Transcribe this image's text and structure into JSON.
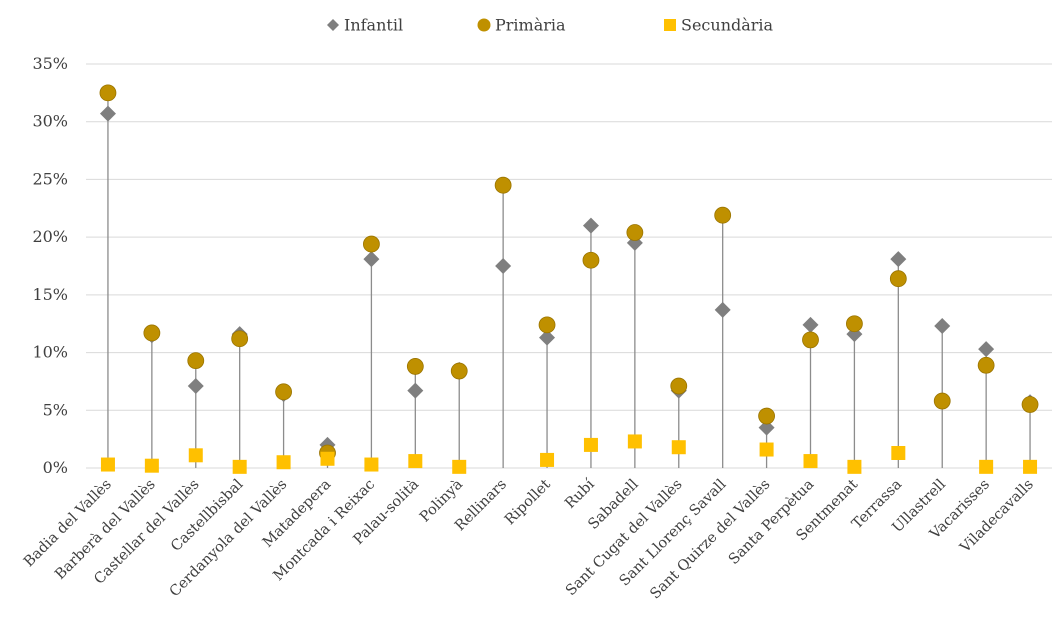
{
  "chart_data": {
    "type": "scatter",
    "title": "",
    "xlabel": "",
    "ylabel": "",
    "ylim": [
      0,
      35
    ],
    "y_ticks": [
      "0%",
      "5%",
      "10%",
      "15%",
      "20%",
      "25%",
      "30%",
      "35%"
    ],
    "y_tick_values": [
      0,
      5,
      10,
      15,
      20,
      25,
      30,
      35
    ],
    "grid": "horizontal",
    "legend_position": "top",
    "categories": [
      "Badia del Vallès",
      "Barberà del Vallès",
      "Castellar del Vallès",
      "Castellbisbal",
      "Cerdanyola del Vallès",
      "Matadepera",
      "Montcada i Reixac",
      "Palau-solità",
      "Polinyà",
      "Rellinars",
      "Ripollet",
      "Rubí",
      "Sabadell",
      "Sant Cugat del Vallès",
      "Sant Llorenç Savall",
      "Sant Quirze del Vallès",
      "Santa Perpètua",
      "Sentmenat",
      "Terrassa",
      "Ullastrell",
      "Vacarisses",
      "Viladecavalls"
    ],
    "series": [
      {
        "name": "Infantil",
        "marker": "diamond",
        "color": "#7f7f7f",
        "values": [
          30.7,
          11.5,
          7.1,
          11.6,
          6.4,
          2.0,
          18.1,
          6.7,
          8.5,
          17.5,
          11.3,
          21.0,
          19.5,
          6.7,
          13.7,
          3.5,
          12.4,
          11.6,
          18.1,
          12.3,
          10.3,
          5.7
        ]
      },
      {
        "name": "Primària",
        "marker": "circle",
        "color": "#bf9000",
        "values": [
          32.5,
          11.7,
          9.3,
          11.2,
          6.6,
          1.3,
          19.4,
          8.8,
          8.4,
          24.5,
          12.4,
          18.0,
          20.4,
          7.1,
          21.9,
          4.5,
          11.1,
          12.5,
          16.4,
          5.8,
          8.9,
          5.5
        ]
      },
      {
        "name": "Secundària",
        "marker": "square",
        "color": "#ffc000",
        "values": [
          0.3,
          0.2,
          1.1,
          0.1,
          0.5,
          0.8,
          0.3,
          0.6,
          0.1,
          null,
          0.7,
          2.0,
          2.3,
          1.8,
          null,
          1.6,
          0.6,
          0.1,
          1.3,
          null,
          0.1,
          0.1
        ]
      }
    ]
  }
}
